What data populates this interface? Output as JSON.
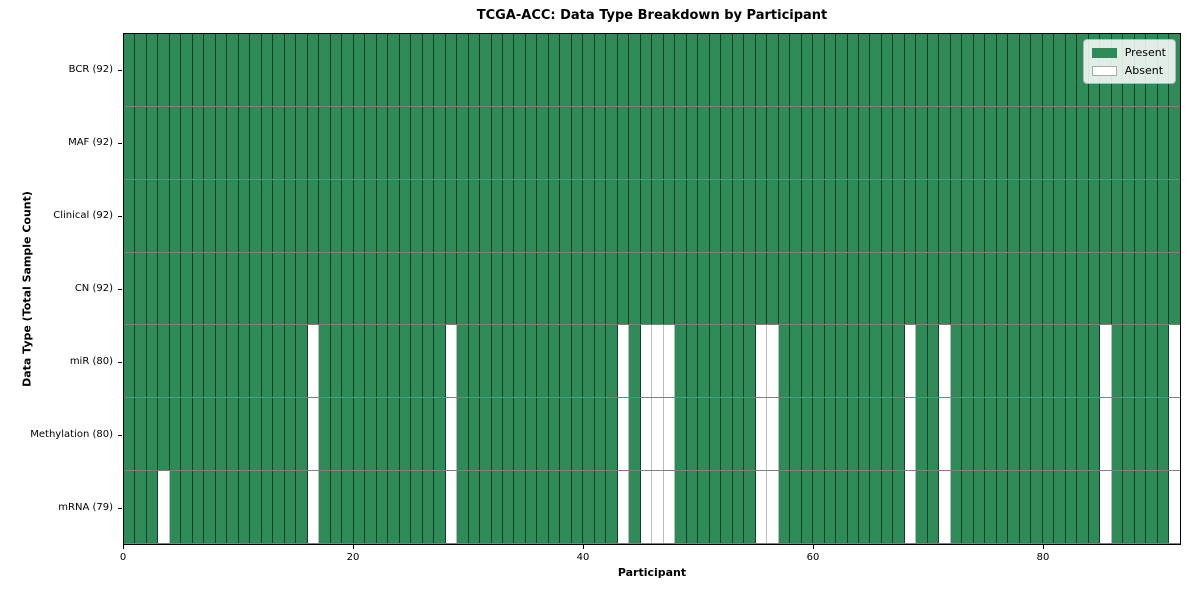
{
  "chart_data": {
    "type": "heatmap",
    "title": "TCGA-ACC: Data Type Breakdown by Participant",
    "xlabel": "Participant",
    "ylabel": "Data Type (Total Sample Count)",
    "n_participants": 92,
    "x_ticks": [
      0,
      20,
      40,
      60,
      80
    ],
    "grid": true,
    "legend_position": "upper right",
    "legend": [
      {
        "label": "Present",
        "color": "#2e8b57"
      },
      {
        "label": "Absent",
        "color": "#ffffff"
      }
    ],
    "rows": [
      {
        "label": "BCR (92)",
        "total_present": 92,
        "absent_participants": []
      },
      {
        "label": "MAF (92)",
        "total_present": 92,
        "absent_participants": []
      },
      {
        "label": "Clinical (92)",
        "total_present": 92,
        "absent_participants": []
      },
      {
        "label": "CN (92)",
        "total_present": 92,
        "absent_participants": []
      },
      {
        "label": "miR (80)",
        "total_present": 80,
        "absent_participants": [
          16,
          28,
          43,
          45,
          46,
          47,
          55,
          56,
          68,
          71,
          85,
          91
        ]
      },
      {
        "label": "Methylation (80)",
        "total_present": 80,
        "absent_participants": [
          16,
          28,
          43,
          45,
          46,
          47,
          55,
          56,
          68,
          71,
          85,
          91
        ]
      },
      {
        "label": "mRNA (79)",
        "total_present": 79,
        "absent_participants": [
          3,
          16,
          28,
          43,
          45,
          46,
          47,
          55,
          56,
          68,
          71,
          85,
          91
        ]
      }
    ],
    "colors": {
      "present": "#2e8b57",
      "absent": "#ffffff",
      "plot_border": "#000000",
      "background": "#ffffff"
    }
  }
}
